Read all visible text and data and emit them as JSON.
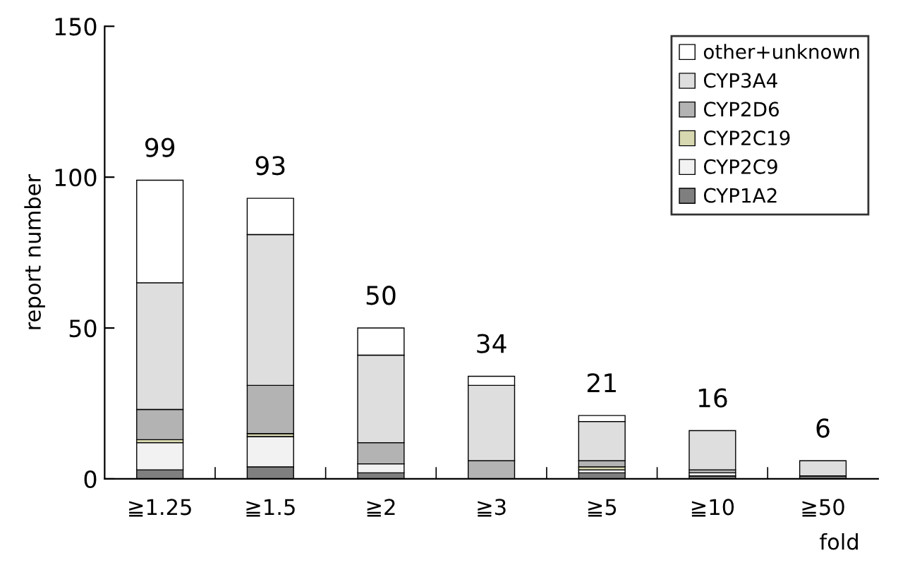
{
  "chart_data": {
    "type": "bar",
    "stacked": true,
    "ylabel": "report number",
    "xlabel": "fold",
    "categories": [
      "≧1.25",
      "≧1.5",
      "≧2",
      "≧3",
      "≧5",
      "≧10",
      "≧50"
    ],
    "series": [
      {
        "name": "CYP1A2",
        "color": "#7f7f7f",
        "values": [
          3,
          4,
          2,
          0,
          2,
          1,
          1
        ]
      },
      {
        "name": "CYP2C9",
        "color": "#f2f2f2",
        "values": [
          9,
          10,
          3,
          0,
          1,
          1,
          0
        ]
      },
      {
        "name": "CYP2C19",
        "color": "#d8d8b0",
        "values": [
          1,
          1,
          0,
          0,
          1,
          0,
          0
        ]
      },
      {
        "name": "CYP2D6",
        "color": "#b3b3b3",
        "values": [
          10,
          16,
          7,
          6,
          2,
          1,
          0
        ]
      },
      {
        "name": "CYP3A4",
        "color": "#dedede",
        "values": [
          42,
          50,
          29,
          25,
          13,
          13,
          5
        ]
      },
      {
        "name": "other+unknown",
        "color": "#ffffff",
        "values": [
          34,
          12,
          9,
          3,
          2,
          0,
          0
        ]
      }
    ],
    "totals": [
      "99",
      "93",
      "50",
      "34",
      "21",
      "16",
      "6"
    ],
    "ylim": [
      0,
      150
    ],
    "yticks": [
      0,
      50,
      100,
      150
    ],
    "grid": false,
    "legend": "top right"
  }
}
